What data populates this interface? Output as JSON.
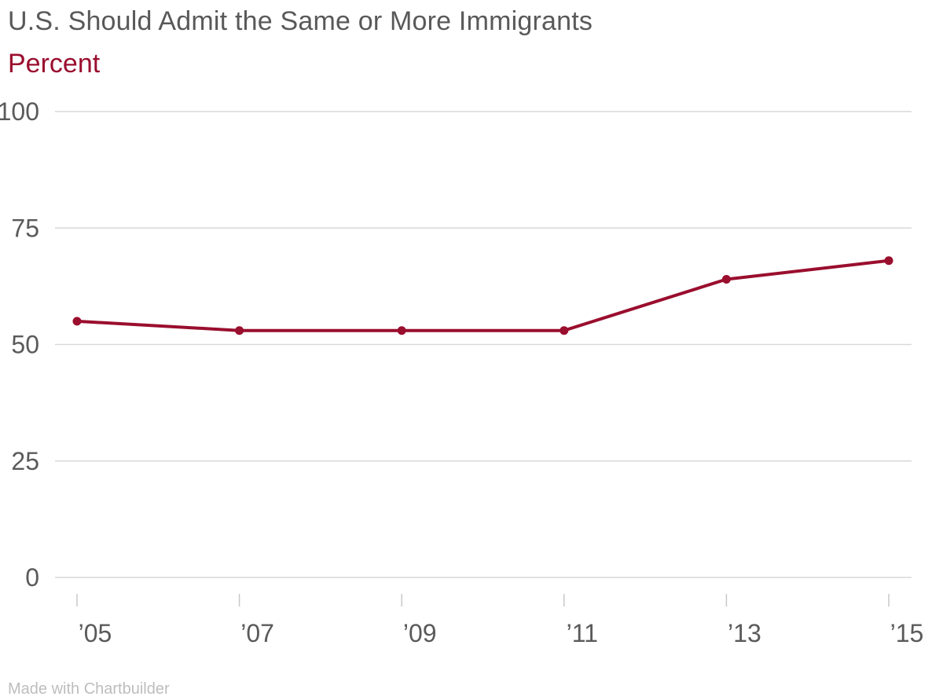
{
  "title": "U.S. Should Admit the Same or More Immigrants",
  "subtitle": "Percent",
  "credit": "Made with Chartbuilder",
  "colors": {
    "series": "#9a0e2e",
    "title": "#595959",
    "grid": "#d9d9d9"
  },
  "chart_data": {
    "type": "line",
    "title": "U.S. Should Admit the Same or More Immigrants",
    "subtitle": "Percent",
    "xlabel": "",
    "ylabel": "",
    "x": [
      2005,
      2007,
      2009,
      2011,
      2013,
      2015
    ],
    "x_tick_labels": [
      "’05",
      "’07",
      "’09",
      "’11",
      "’13",
      "’15"
    ],
    "y_ticks": [
      0,
      25,
      50,
      75,
      100
    ],
    "ylim": [
      0,
      100
    ],
    "grid": true,
    "legend": "none",
    "series": [
      {
        "values": [
          55,
          53,
          53,
          53,
          64,
          68
        ],
        "color": "#9a0e2e"
      }
    ]
  }
}
